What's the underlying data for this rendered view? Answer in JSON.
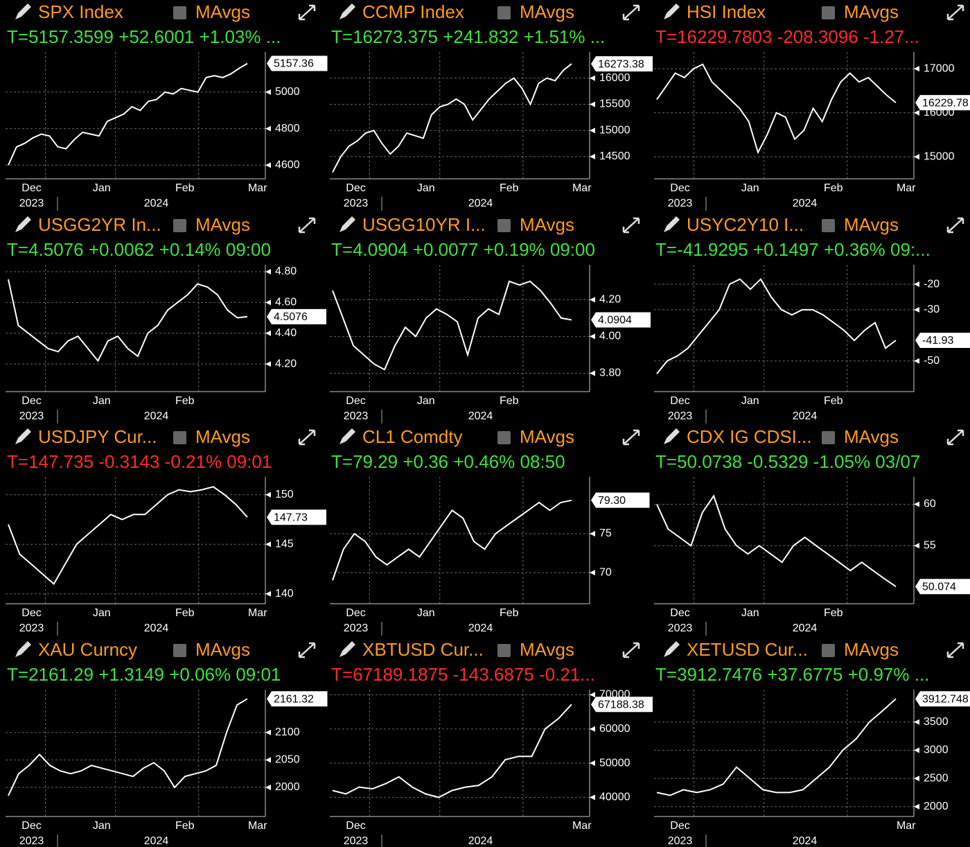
{
  "chart_data": [
    {
      "type": "line",
      "title": "SPX Index",
      "toggle_label": "MAvgs",
      "quote": "T=5157.3599 +52.6001 +1.03% ...",
      "quote_color": "#3ee03e",
      "color": "#ffffff",
      "months": [
        "Dec",
        "Jan",
        "Feb",
        "Mar"
      ],
      "years": [
        "2023",
        "2024"
      ],
      "ylim": [
        4525,
        5220
      ],
      "yticks": [
        4600,
        4800,
        5000
      ],
      "grid": true,
      "tag": {
        "value": 5157.36,
        "label": "5157.36"
      },
      "values": [
        4600,
        4700,
        4720,
        4750,
        4770,
        4760,
        4700,
        4690,
        4740,
        4780,
        4770,
        4760,
        4840,
        4860,
        4880,
        4920,
        4900,
        4950,
        4960,
        5000,
        4990,
        5020,
        5010,
        5000,
        5080,
        5090,
        5080,
        5100,
        5130,
        5157
      ]
    },
    {
      "type": "line",
      "title": "CCMP Index",
      "toggle_label": "MAvgs",
      "quote": "T=16273.375 +241.832 +1.51% ...",
      "quote_color": "#3ee03e",
      "color": "#ffffff",
      "months": [
        "Dec",
        "Jan",
        "Feb",
        "Mar"
      ],
      "years": [
        "2023",
        "2024"
      ],
      "ylim": [
        14075,
        16500
      ],
      "yticks": [
        14500,
        15000,
        15500,
        16000
      ],
      "grid": true,
      "tag": {
        "value": 16273.38,
        "label": "16273.38"
      },
      "values": [
        14200,
        14500,
        14700,
        14800,
        14950,
        15000,
        14750,
        14550,
        14700,
        14950,
        14900,
        14850,
        15300,
        15450,
        15500,
        15600,
        15500,
        15200,
        15400,
        15600,
        15750,
        15900,
        16000,
        15800,
        15500,
        15900,
        16000,
        15950,
        16150,
        16273
      ]
    },
    {
      "type": "line",
      "title": "HSI Index",
      "toggle_label": "MAvgs",
      "quote": "T=16229.7803 -208.3096 -1.27...",
      "quote_color": "#ff2a2a",
      "color": "#ffffff",
      "months": [
        "Dec",
        "Jan",
        "Feb",
        "Mar"
      ],
      "years": [
        "2023",
        "2024"
      ],
      "ylim": [
        14500,
        17380
      ],
      "yticks": [
        15000,
        16000,
        17000
      ],
      "grid": true,
      "tag": {
        "value": 16229.78,
        "label": "16229.78"
      },
      "values": [
        16300,
        16600,
        16900,
        16800,
        17000,
        17100,
        16700,
        16500,
        16300,
        16100,
        15800,
        15100,
        15500,
        16000,
        15900,
        15400,
        15600,
        16100,
        15800,
        16300,
        16700,
        16900,
        16700,
        16800,
        16600,
        16400,
        16230
      ]
    },
    {
      "type": "line",
      "title": "USGG2YR In...",
      "toggle_label": "MAvgs",
      "quote": "T=4.5076 +0.0062 +0.14% 09:00",
      "quote_color": "#3ee03e",
      "color": "#ffffff",
      "months": [
        "Dec",
        "Jan",
        "Feb",
        null
      ],
      "years": [
        "2023",
        "2024"
      ],
      "ylim": [
        4.02,
        4.845
      ],
      "yticks": [
        {
          "value": 4.2,
          "label": "4.20"
        },
        {
          "value": 4.4,
          "label": "4.40"
        },
        {
          "value": 4.6,
          "label": "4.60"
        },
        {
          "value": 4.8,
          "label": "4.80"
        }
      ],
      "grid": true,
      "tag": {
        "value": 4.5076,
        "label": "4.5076"
      },
      "values": [
        4.75,
        4.45,
        4.4,
        4.35,
        4.3,
        4.28,
        4.35,
        4.38,
        4.3,
        4.22,
        4.35,
        4.38,
        4.3,
        4.25,
        4.4,
        4.45,
        4.55,
        4.6,
        4.65,
        4.72,
        4.7,
        4.65,
        4.55,
        4.5,
        4.5076
      ]
    },
    {
      "type": "line",
      "title": "USGG10YR I...",
      "toggle_label": "MAvgs",
      "quote": "T=4.0904 +0.0077 +0.19% 09:00",
      "quote_color": "#3ee03e",
      "color": "#ffffff",
      "months": [
        "Dec",
        "Jan",
        "Feb",
        null
      ],
      "years": [
        "2023",
        "2024"
      ],
      "ylim": [
        3.7,
        4.39
      ],
      "yticks": [
        {
          "value": 3.8,
          "label": "3.80"
        },
        {
          "value": 4,
          "label": "4.00"
        },
        {
          "value": 4.2,
          "label": "4.20"
        }
      ],
      "grid": true,
      "tag": {
        "value": 4.0904,
        "label": "4.0904"
      },
      "values": [
        4.25,
        4.1,
        3.95,
        3.9,
        3.85,
        3.82,
        3.95,
        4.05,
        4,
        4.1,
        4.15,
        4.12,
        4.08,
        3.9,
        4.1,
        4.15,
        4.12,
        4.3,
        4.28,
        4.3,
        4.25,
        4.18,
        4.1,
        4.0904
      ]
    },
    {
      "type": "line",
      "title": "USYC2Y10 I...",
      "toggle_label": "MAvgs",
      "quote": "T=-41.9295 +0.1497 +0.36% 09:...",
      "quote_color": "#3ee03e",
      "color": "#ffffff",
      "months": [
        "Dec",
        "Jan",
        "Feb",
        null
      ],
      "years": [
        "2023",
        "2024"
      ],
      "ylim": [
        -62,
        -12.4
      ],
      "yticks": [
        -50,
        -30,
        -20
      ],
      "grid": true,
      "tag": {
        "value": -41.93,
        "label": "-41.93"
      },
      "values": [
        -55,
        -50,
        -48,
        -45,
        -40,
        -35,
        -30,
        -20,
        -18,
        -22,
        -18,
        -25,
        -30,
        -32,
        -30,
        -30,
        -32,
        -35,
        -38,
        -42,
        -38,
        -35,
        -45,
        -41.93
      ]
    },
    {
      "type": "line",
      "title": "USDJPY Cur...",
      "toggle_label": "MAvgs",
      "quote": "T=147.735 -0.3143 -0.21% 09:01",
      "quote_color": "#ff2a2a",
      "color": "#ffffff",
      "months": [
        "Dec",
        "Jan",
        "Feb",
        "Mar"
      ],
      "years": [
        "2023",
        "2024"
      ],
      "ylim": [
        139,
        151.8
      ],
      "yticks": [
        140,
        145,
        150
      ],
      "grid": true,
      "tag": {
        "value": 147.73,
        "label": "147.73"
      },
      "values": [
        147,
        144,
        143,
        142,
        141,
        143,
        145,
        146,
        147,
        148,
        147.5,
        148,
        148,
        149,
        150,
        150.5,
        150.3,
        150.5,
        150.8,
        150,
        149,
        147.735
      ]
    },
    {
      "type": "line",
      "title": "CL1 Comdty",
      "toggle_label": "MAvgs",
      "quote": "T=79.29 +0.36 +0.46% 08:50",
      "quote_color": "#3ee03e",
      "color": "#ffffff",
      "months": [
        "Dec",
        "Jan",
        "Feb",
        null
      ],
      "years": [
        "2023",
        "2024"
      ],
      "ylim": [
        66,
        82.3
      ],
      "yticks": [
        70,
        75
      ],
      "grid": true,
      "tag": {
        "value": 79.3,
        "label": "79.30"
      },
      "values": [
        69,
        73,
        75,
        74,
        72,
        71,
        72,
        73,
        72,
        74,
        76,
        78,
        77,
        74,
        73,
        75,
        76,
        77,
        78,
        79,
        78,
        79,
        79.29
      ]
    },
    {
      "type": "line",
      "title": "CDX IG CDSI...",
      "toggle_label": "MAvgs",
      "quote": "T=50.0738 -0.5329 -1.05% 03/07",
      "quote_color": "#3ee03e",
      "color": "#ffffff",
      "months": [
        "Dec",
        "Jan",
        "Feb",
        null
      ],
      "years": [
        "2023",
        "2024"
      ],
      "ylim": [
        48,
        63.3
      ],
      "yticks": [
        55,
        60
      ],
      "grid": true,
      "tag": {
        "value": 50.074,
        "label": "50.074"
      },
      "values": [
        60,
        57,
        56,
        55,
        59,
        61,
        57,
        55,
        54,
        55,
        54,
        53,
        55,
        56,
        55,
        54,
        53,
        52,
        53,
        52,
        51,
        50.0738
      ]
    },
    {
      "type": "line",
      "title": "XAU Curncy",
      "toggle_label": "MAvgs",
      "quote": "T=2161.29 +1.3149 +0.06% 09:01",
      "quote_color": "#3ee03e",
      "color": "#ffffff",
      "months": [
        "Dec",
        "Jan",
        "Feb",
        "Mar"
      ],
      "years": [
        "2023",
        "2024"
      ],
      "ylim": [
        1947,
        2178
      ],
      "yticks": [
        2000,
        2050,
        2100
      ],
      "grid": true,
      "tag": {
        "value": 2161.32,
        "label": "2161.32"
      },
      "values": [
        1985,
        2025,
        2040,
        2060,
        2040,
        2030,
        2025,
        2030,
        2040,
        2035,
        2030,
        2025,
        2020,
        2035,
        2045,
        2030,
        2000,
        2020,
        2025,
        2030,
        2040,
        2100,
        2150,
        2161.29
      ]
    },
    {
      "type": "line",
      "title": "XBTUSD Cur...",
      "toggle_label": "MAvgs",
      "quote": "T=67189.1875 -143.6875 -0.21...",
      "quote_color": "#ff2a2a",
      "color": "#ffffff",
      "months": [
        "Dec",
        null,
        null,
        "Mar"
      ],
      "years": [
        "2023",
        "2024"
      ],
      "ylim": [
        34400,
        71500
      ],
      "yticks": [
        40000,
        50000,
        60000,
        70000
      ],
      "grid": true,
      "tag": {
        "value": 67188.38,
        "label": "67188.38"
      },
      "values": [
        42000,
        41000,
        43000,
        42500,
        44000,
        46000,
        43000,
        41000,
        40000,
        42000,
        43000,
        43500,
        46000,
        51000,
        52000,
        52000,
        60000,
        63000,
        67189
      ]
    },
    {
      "type": "line",
      "title": "XETUSD Cur...",
      "toggle_label": "MAvgs",
      "quote": "T=3912.7476 +37.6775 +0.97% ...",
      "quote_color": "#3ee03e",
      "color": "#ffffff",
      "months": [
        "Dec",
        null,
        null,
        "Mar"
      ],
      "years": [
        "2023",
        "2024"
      ],
      "ylim": [
        1825,
        4075
      ],
      "yticks": [
        2000,
        2500,
        3000,
        3500
      ],
      "grid": true,
      "tag": {
        "value": 3912.748,
        "label": "3912.748"
      },
      "values": [
        2250,
        2200,
        2300,
        2250,
        2300,
        2400,
        2700,
        2500,
        2300,
        2250,
        2250,
        2300,
        2500,
        2700,
        3000,
        3200,
        3500,
        3700,
        3912.7476
      ]
    }
  ]
}
